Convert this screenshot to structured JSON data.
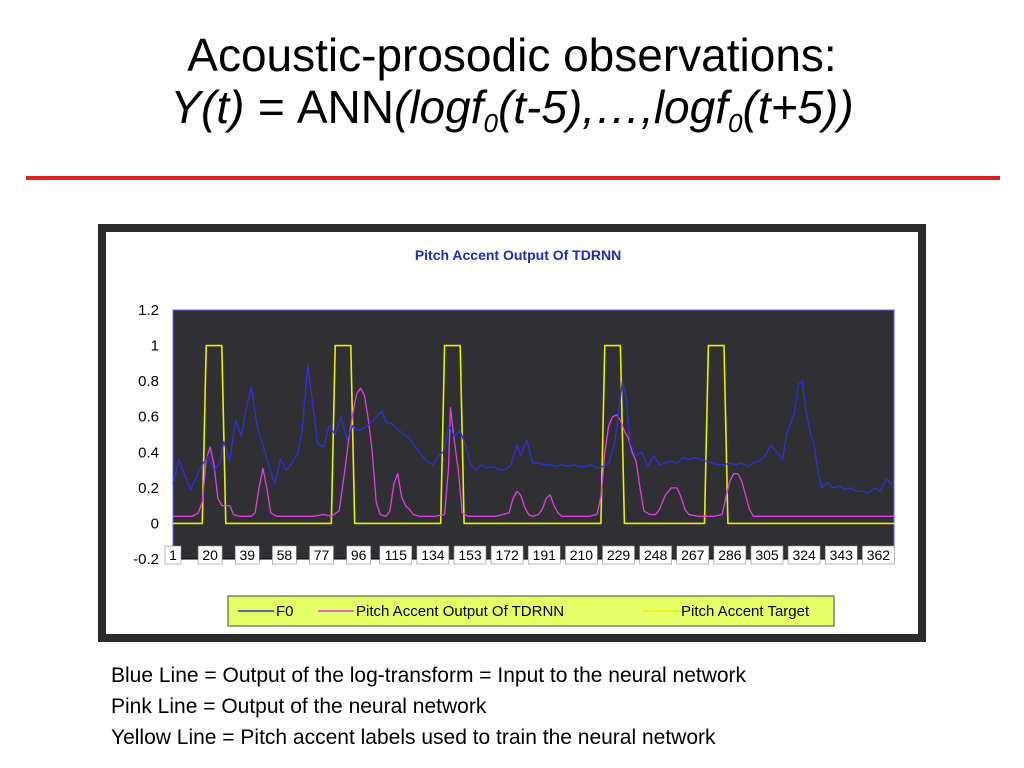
{
  "title": {
    "line1": "Acoustic-prosodic observations:",
    "line2_yt": "Y(t) = ",
    "line2_ann": "ANN",
    "line2_p1": "(logf",
    "line2_sub1": "0",
    "line2_p2": "(t-5),…,logf",
    "line2_sub2": "0",
    "line2_p3": "(t+5))"
  },
  "colors": {
    "title_rule": "#e02020",
    "frame": "#2b2b2b",
    "plot_bg": "#303034",
    "chart_title": "#1e2ab8",
    "f0": "#3030d8",
    "pitch_output": "#e040e0",
    "pitch_target": "#e8f000",
    "legend_bg": "#e6ff66"
  },
  "caption": [
    "Blue Line = Output of the log-transform = Input to the neural network",
    "Pink Line = Output of the neural network",
    "Yellow Line = Pitch accent labels used to train the neural network"
  ],
  "chart_data": {
    "type": "line",
    "title": "Pitch Accent Output Of TDRNN",
    "xlabel": "",
    "ylabel": "",
    "ylim": [
      -0.2,
      1.2
    ],
    "yticks": [
      "1.2",
      "1",
      "0.8",
      "0.6",
      "0.4",
      "0.2",
      "0",
      "-0.2"
    ],
    "xlim": [
      1,
      370
    ],
    "xticks": [
      "1",
      "20",
      "39",
      "58",
      "77",
      "96",
      "115",
      "134",
      "153",
      "172",
      "191",
      "210",
      "229",
      "248",
      "267",
      "286",
      "305",
      "324",
      "343",
      "362"
    ],
    "grid": false,
    "legend_position": "bottom",
    "series": [
      {
        "name": "F0",
        "color": "#3030d8",
        "points": [
          [
            1,
            0.22
          ],
          [
            4,
            0.36
          ],
          [
            7,
            0.27
          ],
          [
            10,
            0.19
          ],
          [
            13,
            0.26
          ],
          [
            16,
            0.33
          ],
          [
            19,
            0.38
          ],
          [
            22,
            0.3
          ],
          [
            25,
            0.34
          ],
          [
            27,
            0.46
          ],
          [
            30,
            0.35
          ],
          [
            33,
            0.58
          ],
          [
            36,
            0.49
          ],
          [
            38,
            0.62
          ],
          [
            41,
            0.77
          ],
          [
            44,
            0.55
          ],
          [
            47,
            0.44
          ],
          [
            50,
            0.33
          ],
          [
            53,
            0.22
          ],
          [
            56,
            0.36
          ],
          [
            59,
            0.3
          ],
          [
            62,
            0.34
          ],
          [
            65,
            0.4
          ],
          [
            67,
            0.52
          ],
          [
            70,
            0.89
          ],
          [
            72,
            0.72
          ],
          [
            75,
            0.45
          ],
          [
            78,
            0.43
          ],
          [
            81,
            0.55
          ],
          [
            84,
            0.5
          ],
          [
            87,
            0.6
          ],
          [
            90,
            0.47
          ],
          [
            93,
            0.55
          ],
          [
            96,
            0.52
          ],
          [
            99,
            0.54
          ],
          [
            102,
            0.56
          ],
          [
            105,
            0.6
          ],
          [
            108,
            0.63
          ],
          [
            110,
            0.57
          ],
          [
            113,
            0.56
          ],
          [
            116,
            0.53
          ],
          [
            119,
            0.5
          ],
          [
            122,
            0.48
          ],
          [
            125,
            0.43
          ],
          [
            128,
            0.39
          ],
          [
            131,
            0.35
          ],
          [
            134,
            0.33
          ],
          [
            137,
            0.38
          ],
          [
            140,
            0.41
          ],
          [
            142,
            0.55
          ],
          [
            145,
            0.49
          ],
          [
            148,
            0.52
          ],
          [
            151,
            0.43
          ],
          [
            153,
            0.34
          ],
          [
            156,
            0.3
          ],
          [
            159,
            0.33
          ],
          [
            162,
            0.31
          ],
          [
            165,
            0.32
          ],
          [
            168,
            0.3
          ],
          [
            171,
            0.3
          ],
          [
            174,
            0.33
          ],
          [
            177,
            0.44
          ],
          [
            179,
            0.38
          ],
          [
            182,
            0.47
          ],
          [
            185,
            0.34
          ],
          [
            188,
            0.34
          ],
          [
            191,
            0.33
          ],
          [
            194,
            0.33
          ],
          [
            197,
            0.32
          ],
          [
            200,
            0.33
          ],
          [
            203,
            0.32
          ],
          [
            206,
            0.33
          ],
          [
            209,
            0.32
          ],
          [
            212,
            0.32
          ],
          [
            215,
            0.33
          ],
          [
            218,
            0.31
          ],
          [
            221,
            0.32
          ],
          [
            224,
            0.34
          ],
          [
            227,
            0.45
          ],
          [
            229,
            0.62
          ],
          [
            231,
            0.8
          ],
          [
            233,
            0.7
          ],
          [
            235,
            0.45
          ],
          [
            238,
            0.38
          ],
          [
            241,
            0.4
          ],
          [
            244,
            0.32
          ],
          [
            247,
            0.38
          ],
          [
            250,
            0.33
          ],
          [
            253,
            0.34
          ],
          [
            256,
            0.35
          ],
          [
            259,
            0.34
          ],
          [
            262,
            0.37
          ],
          [
            265,
            0.36
          ],
          [
            268,
            0.37
          ],
          [
            271,
            0.36
          ],
          [
            274,
            0.35
          ],
          [
            277,
            0.34
          ],
          [
            280,
            0.33
          ],
          [
            283,
            0.33
          ],
          [
            286,
            0.34
          ],
          [
            289,
            0.33
          ],
          [
            292,
            0.34
          ],
          [
            295,
            0.32
          ],
          [
            298,
            0.34
          ],
          [
            301,
            0.35
          ],
          [
            304,
            0.38
          ],
          [
            307,
            0.44
          ],
          [
            310,
            0.4
          ],
          [
            313,
            0.36
          ],
          [
            315,
            0.5
          ],
          [
            317,
            0.56
          ],
          [
            319,
            0.62
          ],
          [
            321,
            0.78
          ],
          [
            323,
            0.8
          ],
          [
            325,
            0.63
          ],
          [
            327,
            0.52
          ],
          [
            329,
            0.45
          ],
          [
            331,
            0.3
          ],
          [
            333,
            0.2
          ],
          [
            336,
            0.23
          ],
          [
            339,
            0.2
          ],
          [
            342,
            0.21
          ],
          [
            345,
            0.19
          ],
          [
            348,
            0.2
          ],
          [
            351,
            0.18
          ],
          [
            354,
            0.18
          ],
          [
            357,
            0.17
          ],
          [
            360,
            0.2
          ],
          [
            363,
            0.18
          ],
          [
            366,
            0.25
          ],
          [
            369,
            0.22
          ]
        ]
      },
      {
        "name": "Pitch Accent Output Of TDRNN",
        "color": "#e040e0",
        "points": [
          [
            1,
            0.04
          ],
          [
            6,
            0.04
          ],
          [
            11,
            0.04
          ],
          [
            14,
            0.06
          ],
          [
            16,
            0.12
          ],
          [
            18,
            0.36
          ],
          [
            20,
            0.43
          ],
          [
            22,
            0.33
          ],
          [
            24,
            0.14
          ],
          [
            26,
            0.1
          ],
          [
            28,
            0.1
          ],
          [
            30,
            0.1
          ],
          [
            32,
            0.05
          ],
          [
            35,
            0.04
          ],
          [
            38,
            0.04
          ],
          [
            41,
            0.04
          ],
          [
            43,
            0.06
          ],
          [
            45,
            0.2
          ],
          [
            47,
            0.31
          ],
          [
            49,
            0.2
          ],
          [
            51,
            0.06
          ],
          [
            54,
            0.04
          ],
          [
            58,
            0.04
          ],
          [
            63,
            0.04
          ],
          [
            68,
            0.04
          ],
          [
            73,
            0.04
          ],
          [
            78,
            0.05
          ],
          [
            82,
            0.04
          ],
          [
            86,
            0.07
          ],
          [
            89,
            0.3
          ],
          [
            91,
            0.48
          ],
          [
            93,
            0.62
          ],
          [
            95,
            0.73
          ],
          [
            97,
            0.76
          ],
          [
            99,
            0.72
          ],
          [
            101,
            0.58
          ],
          [
            103,
            0.4
          ],
          [
            105,
            0.12
          ],
          [
            107,
            0.05
          ],
          [
            110,
            0.04
          ],
          [
            112,
            0.07
          ],
          [
            114,
            0.22
          ],
          [
            116,
            0.28
          ],
          [
            118,
            0.15
          ],
          [
            120,
            0.1
          ],
          [
            122,
            0.08
          ],
          [
            124,
            0.05
          ],
          [
            127,
            0.04
          ],
          [
            131,
            0.04
          ],
          [
            135,
            0.04
          ],
          [
            140,
            0.05
          ],
          [
            142,
            0.31
          ],
          [
            143,
            0.65
          ],
          [
            145,
            0.46
          ],
          [
            147,
            0.3
          ],
          [
            149,
            0.06
          ],
          [
            152,
            0.04
          ],
          [
            157,
            0.04
          ],
          [
            162,
            0.04
          ],
          [
            166,
            0.04
          ],
          [
            170,
            0.05
          ],
          [
            173,
            0.06
          ],
          [
            175,
            0.14
          ],
          [
            177,
            0.18
          ],
          [
            179,
            0.16
          ],
          [
            181,
            0.09
          ],
          [
            183,
            0.05
          ],
          [
            185,
            0.04
          ],
          [
            188,
            0.05
          ],
          [
            190,
            0.08
          ],
          [
            192,
            0.14
          ],
          [
            194,
            0.16
          ],
          [
            196,
            0.1
          ],
          [
            198,
            0.06
          ],
          [
            200,
            0.04
          ],
          [
            205,
            0.04
          ],
          [
            210,
            0.04
          ],
          [
            214,
            0.04
          ],
          [
            218,
            0.05
          ],
          [
            220,
            0.15
          ],
          [
            222,
            0.4
          ],
          [
            224,
            0.55
          ],
          [
            226,
            0.6
          ],
          [
            228,
            0.61
          ],
          [
            230,
            0.58
          ],
          [
            232,
            0.52
          ],
          [
            234,
            0.48
          ],
          [
            236,
            0.4
          ],
          [
            238,
            0.35
          ],
          [
            240,
            0.2
          ],
          [
            242,
            0.07
          ],
          [
            245,
            0.05
          ],
          [
            248,
            0.05
          ],
          [
            250,
            0.08
          ],
          [
            253,
            0.16
          ],
          [
            256,
            0.2
          ],
          [
            259,
            0.2
          ],
          [
            261,
            0.15
          ],
          [
            263,
            0.08
          ],
          [
            265,
            0.05
          ],
          [
            270,
            0.04
          ],
          [
            274,
            0.04
          ],
          [
            278,
            0.04
          ],
          [
            282,
            0.05
          ],
          [
            284,
            0.15
          ],
          [
            286,
            0.24
          ],
          [
            288,
            0.28
          ],
          [
            290,
            0.28
          ],
          [
            292,
            0.24
          ],
          [
            294,
            0.16
          ],
          [
            296,
            0.08
          ],
          [
            298,
            0.04
          ],
          [
            303,
            0.04
          ],
          [
            310,
            0.04
          ],
          [
            320,
            0.04
          ],
          [
            330,
            0.04
          ],
          [
            340,
            0.04
          ],
          [
            350,
            0.04
          ],
          [
            360,
            0.04
          ],
          [
            370,
            0.04
          ]
        ]
      },
      {
        "name": "Pitch Accent Target",
        "color": "#e8f000",
        "points": [
          [
            1,
            0
          ],
          [
            16,
            0
          ],
          [
            18,
            1
          ],
          [
            26,
            1
          ],
          [
            28,
            0
          ],
          [
            82,
            0
          ],
          [
            84,
            1
          ],
          [
            92,
            1
          ],
          [
            94,
            0
          ],
          [
            138,
            0
          ],
          [
            140,
            1
          ],
          [
            148,
            1
          ],
          [
            150,
            0
          ],
          [
            220,
            0
          ],
          [
            222,
            1
          ],
          [
            230,
            1
          ],
          [
            232,
            0
          ],
          [
            273,
            0
          ],
          [
            275,
            1
          ],
          [
            283,
            1
          ],
          [
            285,
            0
          ],
          [
            370,
            0
          ]
        ]
      }
    ]
  }
}
